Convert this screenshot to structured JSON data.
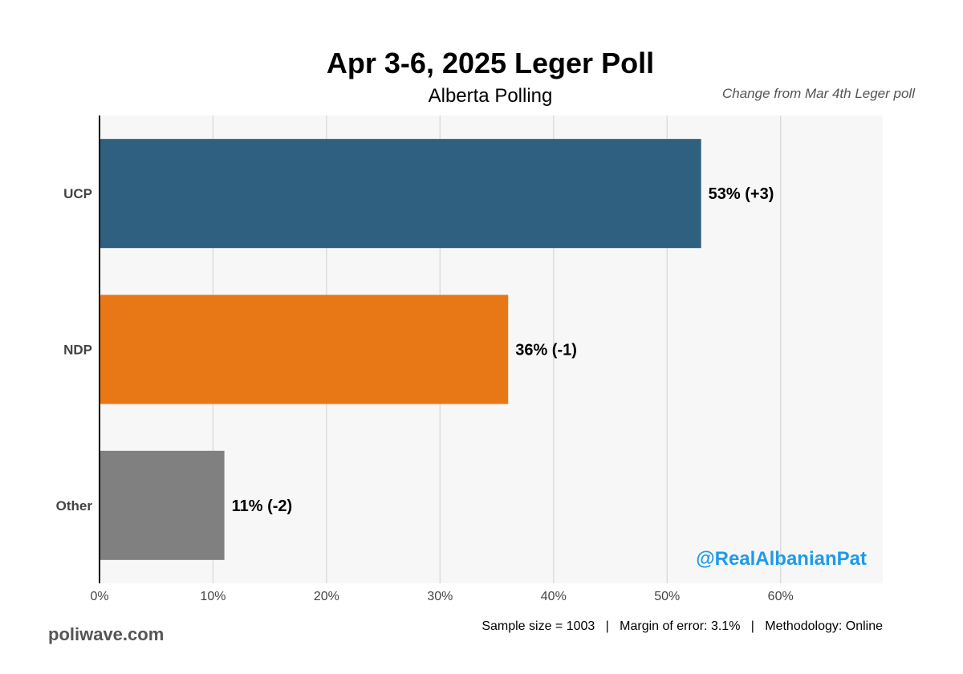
{
  "chart_data": {
    "type": "bar",
    "orientation": "horizontal",
    "title": "Apr 3-6, 2025 Leger Poll",
    "subtitle": "Alberta Polling",
    "annotation": "Change from Mar 4th Leger poll",
    "categories": [
      "UCP",
      "NDP",
      "Other"
    ],
    "values": [
      53,
      36,
      11
    ],
    "value_labels": [
      "53% (+3)",
      "36% (-1)",
      "11% (-2)"
    ],
    "colors": [
      "#30607f",
      "#e87716",
      "#808080"
    ],
    "xlim": [
      0,
      69
    ],
    "xticks": [
      0,
      10,
      20,
      30,
      40,
      50,
      60
    ],
    "xtick_labels": [
      "0%",
      "10%",
      "20%",
      "30%",
      "40%",
      "50%",
      "60%"
    ],
    "grid": true,
    "xlabel": "",
    "ylabel": ""
  },
  "watermark": "@RealAlbanianPat",
  "brand": "poliwave.com",
  "footer": "Sample size = 1003   |   Margin of error: 3.1%   |   Methodology: Online"
}
